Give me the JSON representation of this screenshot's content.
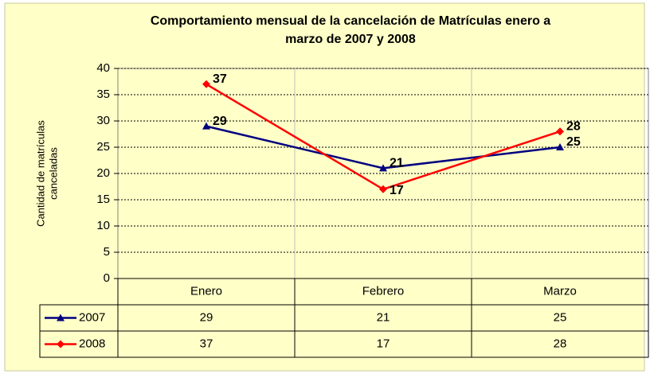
{
  "chart_data": {
    "type": "line",
    "title": [
      "Comportamiento mensual de la cancelación de Matrículas enero a",
      "marzo de 2007 y 2008"
    ],
    "y_label": [
      "Cantidad de matrículas",
      "canceladas"
    ],
    "categories": [
      "Enero",
      "Febrero",
      "Marzo"
    ],
    "series": [
      {
        "name": "2007",
        "color": "#000080",
        "marker": "triangle",
        "values": [
          29,
          21,
          25
        ]
      },
      {
        "name": "2008",
        "color": "#ff0000",
        "marker": "diamond",
        "values": [
          37,
          17,
          28
        ]
      }
    ],
    "ylim": [
      0,
      40
    ],
    "yticks": [
      0,
      5,
      10,
      15,
      20,
      25,
      30,
      35,
      40
    ],
    "grid": true,
    "data_table": true
  }
}
